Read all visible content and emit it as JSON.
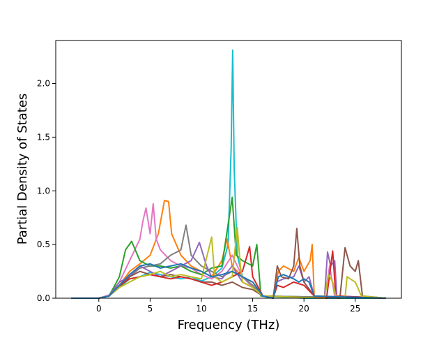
{
  "chart_data": {
    "type": "line",
    "title": "",
    "xlabel": "Frequency (THz)",
    "ylabel": "Partial Density of States",
    "xlim": [
      -4.2,
      29.5
    ],
    "ylim": [
      0,
      2.4
    ],
    "xticks": [
      0,
      5,
      10,
      15,
      20,
      25
    ],
    "yticks": [
      0.0,
      0.5,
      1.0,
      1.5,
      2.0
    ],
    "xtick_labels": [
      "0",
      "5",
      "10",
      "15",
      "20",
      "25"
    ],
    "ytick_labels": [
      "0.0",
      "0.5",
      "1.0",
      "1.5",
      "2.0"
    ],
    "grid": false,
    "legend": "none",
    "colors": [
      "#1f77b4",
      "#ff7f0e",
      "#2ca02c",
      "#d62728",
      "#9467bd",
      "#8c564b",
      "#e377c2",
      "#7f7f7f",
      "#bcbd22",
      "#17becf"
    ],
    "series": [
      {
        "color": "#17becf",
        "points": [
          [
            -2.7,
            0
          ],
          [
            0,
            0
          ],
          [
            1,
            0.02
          ],
          [
            2,
            0.1
          ],
          [
            3,
            0.18
          ],
          [
            4,
            0.2
          ],
          [
            5,
            0.24
          ],
          [
            6,
            0.22
          ],
          [
            7,
            0.2
          ],
          [
            8,
            0.18
          ],
          [
            9,
            0.2
          ],
          [
            10,
            0.16
          ],
          [
            11,
            0.2
          ],
          [
            12,
            0.28
          ],
          [
            12.6,
            0.5
          ],
          [
            12.9,
            1.4
          ],
          [
            13.05,
            2.31
          ],
          [
            13.2,
            1.2
          ],
          [
            13.5,
            0.4
          ],
          [
            14,
            0.2
          ],
          [
            15,
            0.12
          ],
          [
            16,
            0.02
          ],
          [
            20,
            0
          ],
          [
            28,
            0
          ]
        ]
      },
      {
        "color": "#ff7f0e",
        "points": [
          [
            -2.7,
            0
          ],
          [
            0,
            0
          ],
          [
            1,
            0.02
          ],
          [
            2,
            0.12
          ],
          [
            3,
            0.25
          ],
          [
            4,
            0.32
          ],
          [
            5,
            0.4
          ],
          [
            5.8,
            0.6
          ],
          [
            6.4,
            0.91
          ],
          [
            6.8,
            0.9
          ],
          [
            7.1,
            0.6
          ],
          [
            8,
            0.4
          ],
          [
            9,
            0.3
          ],
          [
            10,
            0.25
          ],
          [
            11,
            0.2
          ],
          [
            12,
            0.35
          ],
          [
            12.5,
            0.55
          ],
          [
            13,
            0.3
          ],
          [
            14,
            0.2
          ],
          [
            15,
            0.15
          ],
          [
            16,
            0.02
          ],
          [
            17,
            0.02
          ],
          [
            17.5,
            0.25
          ],
          [
            18,
            0.3
          ],
          [
            19,
            0.25
          ],
          [
            19.5,
            0.38
          ],
          [
            20,
            0.25
          ],
          [
            20.6,
            0.35
          ],
          [
            20.8,
            0.5
          ],
          [
            21,
            0.02
          ],
          [
            28,
            0
          ]
        ]
      },
      {
        "color": "#e377c2",
        "points": [
          [
            -2.7,
            0
          ],
          [
            0,
            0
          ],
          [
            1,
            0.03
          ],
          [
            2,
            0.15
          ],
          [
            3,
            0.35
          ],
          [
            4,
            0.55
          ],
          [
            4.3,
            0.72
          ],
          [
            4.6,
            0.84
          ],
          [
            5,
            0.6
          ],
          [
            5.3,
            0.88
          ],
          [
            5.6,
            0.55
          ],
          [
            6,
            0.45
          ],
          [
            7,
            0.35
          ],
          [
            8,
            0.3
          ],
          [
            9,
            0.28
          ],
          [
            10,
            0.22
          ],
          [
            11,
            0.18
          ],
          [
            12,
            0.25
          ],
          [
            13,
            0.4
          ],
          [
            14,
            0.2
          ],
          [
            15,
            0.1
          ],
          [
            16,
            0.02
          ],
          [
            22,
            0
          ],
          [
            22.5,
            0.3
          ],
          [
            23,
            0.02
          ],
          [
            28,
            0
          ]
        ]
      },
      {
        "color": "#2ca02c",
        "points": [
          [
            -2.7,
            0
          ],
          [
            0,
            0
          ],
          [
            1,
            0.02
          ],
          [
            2,
            0.2
          ],
          [
            2.6,
            0.45
          ],
          [
            3.2,
            0.53
          ],
          [
            4,
            0.35
          ],
          [
            5,
            0.3
          ],
          [
            6,
            0.3
          ],
          [
            7,
            0.28
          ],
          [
            8,
            0.3
          ],
          [
            9,
            0.25
          ],
          [
            10,
            0.22
          ],
          [
            11,
            0.28
          ],
          [
            12,
            0.3
          ],
          [
            13,
            0.94
          ],
          [
            13.4,
            0.4
          ],
          [
            14,
            0.35
          ],
          [
            15,
            0.3
          ],
          [
            15.4,
            0.5
          ],
          [
            15.8,
            0.02
          ],
          [
            28,
            0
          ]
        ]
      },
      {
        "color": "#7f7f7f",
        "points": [
          [
            -2.7,
            0
          ],
          [
            0,
            0
          ],
          [
            1,
            0.02
          ],
          [
            2,
            0.12
          ],
          [
            3,
            0.2
          ],
          [
            4,
            0.28
          ],
          [
            5,
            0.3
          ],
          [
            6,
            0.32
          ],
          [
            7,
            0.4
          ],
          [
            8,
            0.45
          ],
          [
            8.5,
            0.68
          ],
          [
            9,
            0.4
          ],
          [
            10,
            0.3
          ],
          [
            11,
            0.25
          ],
          [
            12,
            0.2
          ],
          [
            13,
            0.25
          ],
          [
            14,
            0.2
          ],
          [
            15,
            0.12
          ],
          [
            16,
            0.02
          ],
          [
            28,
            0
          ]
        ]
      },
      {
        "color": "#9467bd",
        "points": [
          [
            -2.7,
            0
          ],
          [
            0,
            0
          ],
          [
            1,
            0.02
          ],
          [
            2,
            0.15
          ],
          [
            3,
            0.2
          ],
          [
            4,
            0.3
          ],
          [
            5,
            0.25
          ],
          [
            6,
            0.2
          ],
          [
            7,
            0.25
          ],
          [
            8,
            0.3
          ],
          [
            9,
            0.35
          ],
          [
            9.8,
            0.52
          ],
          [
            10.5,
            0.3
          ],
          [
            11,
            0.2
          ],
          [
            12,
            0.18
          ],
          [
            13,
            0.3
          ],
          [
            14,
            0.15
          ],
          [
            15,
            0.1
          ],
          [
            16,
            0.02
          ],
          [
            17,
            0
          ],
          [
            17.3,
            0.15
          ],
          [
            18,
            0.18
          ],
          [
            19,
            0.2
          ],
          [
            19.5,
            0.3
          ],
          [
            20,
            0.15
          ],
          [
            20.5,
            0.2
          ],
          [
            21,
            0.02
          ],
          [
            22,
            0
          ],
          [
            22.3,
            0.43
          ],
          [
            22.6,
            0.3
          ],
          [
            23,
            0.35
          ],
          [
            23.2,
            0.02
          ],
          [
            28,
            0
          ]
        ]
      },
      {
        "color": "#8c564b",
        "points": [
          [
            -2.7,
            0
          ],
          [
            0,
            0
          ],
          [
            1,
            0.02
          ],
          [
            2,
            0.1
          ],
          [
            3,
            0.2
          ],
          [
            4,
            0.25
          ],
          [
            5,
            0.22
          ],
          [
            6,
            0.2
          ],
          [
            7,
            0.22
          ],
          [
            8,
            0.2
          ],
          [
            9,
            0.18
          ],
          [
            10,
            0.15
          ],
          [
            11,
            0.15
          ],
          [
            12,
            0.12
          ],
          [
            13,
            0.15
          ],
          [
            14,
            0.1
          ],
          [
            15,
            0.08
          ],
          [
            16,
            0.02
          ],
          [
            17,
            0
          ],
          [
            17.4,
            0.3
          ],
          [
            17.8,
            0.2
          ],
          [
            18.5,
            0.18
          ],
          [
            19,
            0.3
          ],
          [
            19.3,
            0.65
          ],
          [
            19.6,
            0.3
          ],
          [
            20,
            0.15
          ],
          [
            21,
            0.02
          ],
          [
            23.5,
            0
          ],
          [
            24,
            0.47
          ],
          [
            24.5,
            0.3
          ],
          [
            25,
            0.25
          ],
          [
            25.3,
            0.35
          ],
          [
            25.7,
            0.02
          ],
          [
            28,
            0
          ]
        ]
      },
      {
        "color": "#d62728",
        "points": [
          [
            -2.7,
            0
          ],
          [
            0,
            0
          ],
          [
            1,
            0.02
          ],
          [
            2,
            0.12
          ],
          [
            3,
            0.18
          ],
          [
            4,
            0.2
          ],
          [
            5,
            0.22
          ],
          [
            6,
            0.2
          ],
          [
            7,
            0.18
          ],
          [
            8,
            0.2
          ],
          [
            9,
            0.18
          ],
          [
            10,
            0.15
          ],
          [
            11,
            0.12
          ],
          [
            12,
            0.15
          ],
          [
            13,
            0.2
          ],
          [
            14,
            0.25
          ],
          [
            14.7,
            0.48
          ],
          [
            15,
            0.2
          ],
          [
            16,
            0.02
          ],
          [
            17,
            0
          ],
          [
            17.4,
            0.12
          ],
          [
            18,
            0.1
          ],
          [
            19,
            0.15
          ],
          [
            20,
            0.12
          ],
          [
            21,
            0.02
          ],
          [
            22.2,
            0
          ],
          [
            22.8,
            0.44
          ],
          [
            23.1,
            0.02
          ],
          [
            28,
            0
          ]
        ]
      },
      {
        "color": "#bcbd22",
        "points": [
          [
            -2.7,
            0
          ],
          [
            0,
            0
          ],
          [
            1,
            0.02
          ],
          [
            2,
            0.1
          ],
          [
            3,
            0.15
          ],
          [
            4,
            0.2
          ],
          [
            5,
            0.22
          ],
          [
            6,
            0.25
          ],
          [
            7,
            0.2
          ],
          [
            8,
            0.22
          ],
          [
            9,
            0.2
          ],
          [
            10,
            0.18
          ],
          [
            11,
            0.57
          ],
          [
            11.3,
            0.2
          ],
          [
            12,
            0.15
          ],
          [
            13,
            0.2
          ],
          [
            13.5,
            0.66
          ],
          [
            13.8,
            0.3
          ],
          [
            14,
            0.15
          ],
          [
            15,
            0.1
          ],
          [
            16,
            0.02
          ],
          [
            22,
            0
          ],
          [
            22.4,
            0.22
          ],
          [
            22.8,
            0.15
          ],
          [
            23.1,
            0.02
          ],
          [
            24,
            0
          ],
          [
            24.2,
            0.2
          ],
          [
            25,
            0.15
          ],
          [
            25.6,
            0.02
          ],
          [
            28,
            0
          ]
        ]
      },
      {
        "color": "#1f77b4",
        "points": [
          [
            -2.7,
            0
          ],
          [
            0,
            0
          ],
          [
            1,
            0.02
          ],
          [
            2,
            0.12
          ],
          [
            3,
            0.22
          ],
          [
            4,
            0.3
          ],
          [
            5,
            0.32
          ],
          [
            6,
            0.28
          ],
          [
            7,
            0.3
          ],
          [
            8,
            0.32
          ],
          [
            9,
            0.28
          ],
          [
            10,
            0.25
          ],
          [
            11,
            0.2
          ],
          [
            12,
            0.22
          ],
          [
            13,
            0.25
          ],
          [
            14,
            0.2
          ],
          [
            15,
            0.15
          ],
          [
            16,
            0.02
          ],
          [
            17,
            0
          ],
          [
            17.5,
            0.2
          ],
          [
            18,
            0.22
          ],
          [
            19,
            0.18
          ],
          [
            19.5,
            0.15
          ],
          [
            20,
            0.18
          ],
          [
            20.5,
            0.15
          ],
          [
            21,
            0.02
          ],
          [
            28,
            0
          ]
        ]
      }
    ]
  }
}
